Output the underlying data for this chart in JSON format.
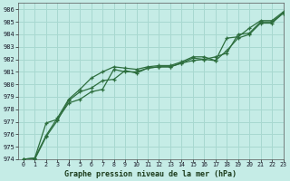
{
  "title": "Graphe pression niveau de la mer (hPa)",
  "bg_color": "#c5ece6",
  "grid_color": "#a8d8d0",
  "line_color": "#2d6e3e",
  "xlim": [
    -0.5,
    23
  ],
  "ylim": [
    974,
    986.5
  ],
  "xticks": [
    0,
    1,
    2,
    3,
    4,
    5,
    6,
    7,
    8,
    9,
    10,
    11,
    12,
    13,
    14,
    15,
    16,
    17,
    18,
    19,
    20,
    21,
    22,
    23
  ],
  "yticks": [
    974,
    975,
    976,
    977,
    978,
    979,
    980,
    981,
    982,
    983,
    984,
    985,
    986
  ],
  "series": [
    [
      974.0,
      974.1,
      976.9,
      977.2,
      978.5,
      978.8,
      979.4,
      979.6,
      981.2,
      981.0,
      981.0,
      981.3,
      981.4,
      981.4,
      981.7,
      981.9,
      982.0,
      982.2,
      982.5,
      984.0,
      984.1,
      985.0,
      985.0,
      985.7
    ],
    [
      974.0,
      974.1,
      975.9,
      977.3,
      978.8,
      979.6,
      980.5,
      981.0,
      981.4,
      981.3,
      981.2,
      981.4,
      981.5,
      981.5,
      981.8,
      982.2,
      982.2,
      981.9,
      983.7,
      983.8,
      984.5,
      985.1,
      985.1,
      985.8
    ],
    [
      974.0,
      974.0,
      975.8,
      977.1,
      978.7,
      979.4,
      979.7,
      980.3,
      980.4,
      981.1,
      980.9,
      981.3,
      981.4,
      981.4,
      981.7,
      982.1,
      982.0,
      981.9,
      982.7,
      983.7,
      984.0,
      984.9,
      984.9,
      985.7
    ]
  ]
}
